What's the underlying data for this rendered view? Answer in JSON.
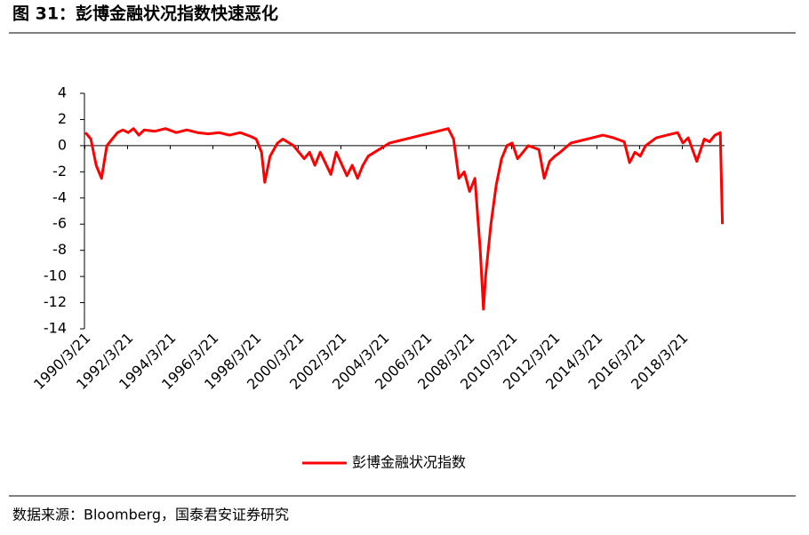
{
  "chart_data": {
    "type": "line",
    "title": "图 31：彭博金融状况指数快速恶化",
    "source": "数据来源：Bloomberg，国泰君安证券研究",
    "x": [
      1990.25,
      1990.5,
      1990.75,
      1991.0,
      1991.25,
      1991.5,
      1991.75,
      1992.0,
      1992.25,
      1992.5,
      1992.75,
      1993.0,
      1993.5,
      1994.0,
      1994.5,
      1995.0,
      1995.5,
      1996.0,
      1996.5,
      1997.0,
      1997.5,
      1998.0,
      1998.25,
      1998.5,
      1998.65,
      1998.9,
      1999.25,
      1999.5,
      2000.0,
      2000.5,
      2000.75,
      2001.0,
      2001.25,
      2001.75,
      2002.0,
      2002.5,
      2002.75,
      2003.0,
      2003.25,
      2003.5,
      2004.0,
      2004.5,
      2005.0,
      2005.5,
      2006.0,
      2006.5,
      2007.0,
      2007.25,
      2007.5,
      2007.75,
      2008.0,
      2008.25,
      2008.5,
      2008.75,
      2008.9,
      2009.0,
      2009.25,
      2009.5,
      2009.75,
      2010.0,
      2010.25,
      2010.5,
      2010.75,
      2011.0,
      2011.5,
      2011.75,
      2012.0,
      2012.25,
      2012.5,
      2013.0,
      2013.5,
      2014.0,
      2014.5,
      2015.0,
      2015.5,
      2015.75,
      2016.0,
      2016.25,
      2016.5,
      2017.0,
      2017.5,
      2018.0,
      2018.25,
      2018.5,
      2018.9,
      2019.25,
      2019.5,
      2019.75,
      2020.0,
      2020.1
    ],
    "series": [
      {
        "name": "彭博金融状况指数",
        "color": "#ff0000",
        "values": [
          1.0,
          0.5,
          -1.5,
          -2.5,
          0.0,
          0.5,
          1.0,
          1.2,
          1.0,
          1.3,
          0.8,
          1.2,
          1.1,
          1.3,
          1.0,
          1.2,
          1.0,
          0.9,
          1.0,
          0.8,
          1.0,
          0.7,
          0.5,
          -0.5,
          -2.8,
          -0.8,
          0.2,
          0.5,
          0.0,
          -1.0,
          -0.5,
          -1.5,
          -0.5,
          -2.2,
          -0.5,
          -2.3,
          -1.5,
          -2.5,
          -1.5,
          -0.8,
          -0.3,
          0.2,
          0.4,
          0.6,
          0.8,
          1.0,
          1.2,
          1.3,
          0.5,
          -2.5,
          -2.0,
          -3.5,
          -2.5,
          -8.0,
          -12.5,
          -10.0,
          -6.0,
          -3.0,
          -1.0,
          0.0,
          0.2,
          -1.0,
          -0.5,
          0.0,
          -0.3,
          -2.5,
          -1.2,
          -0.8,
          -0.5,
          0.2,
          0.4,
          0.6,
          0.8,
          0.6,
          0.3,
          -1.3,
          -0.5,
          -0.8,
          0.0,
          0.6,
          0.8,
          1.0,
          0.2,
          0.6,
          -1.2,
          0.5,
          0.3,
          0.8,
          1.0,
          -6.0
        ]
      }
    ],
    "xlim": [
      1990.2,
      2020.2
    ],
    "xticks": [
      {
        "value": 1990.22,
        "label": "1990/3/21"
      },
      {
        "value": 1992.22,
        "label": "1992/3/21"
      },
      {
        "value": 1994.22,
        "label": "1994/3/21"
      },
      {
        "value": 1996.22,
        "label": "1996/3/21"
      },
      {
        "value": 1998.22,
        "label": "1998/3/21"
      },
      {
        "value": 2000.22,
        "label": "2000/3/21"
      },
      {
        "value": 2002.22,
        "label": "2002/3/21"
      },
      {
        "value": 2004.22,
        "label": "2004/3/21"
      },
      {
        "value": 2006.22,
        "label": "2006/3/21"
      },
      {
        "value": 2008.22,
        "label": "2008/3/21"
      },
      {
        "value": 2010.22,
        "label": "2010/3/21"
      },
      {
        "value": 2012.22,
        "label": "2012/3/21"
      },
      {
        "value": 2014.22,
        "label": "2014/3/21"
      },
      {
        "value": 2016.22,
        "label": "2016/3/21"
      },
      {
        "value": 2018.22,
        "label": "2018/3/21"
      }
    ],
    "ylim": [
      -14,
      4
    ],
    "yticks": [
      4,
      2,
      0,
      -2,
      -4,
      -6,
      -8,
      -10,
      -12,
      -14
    ],
    "legend": "bottom"
  }
}
